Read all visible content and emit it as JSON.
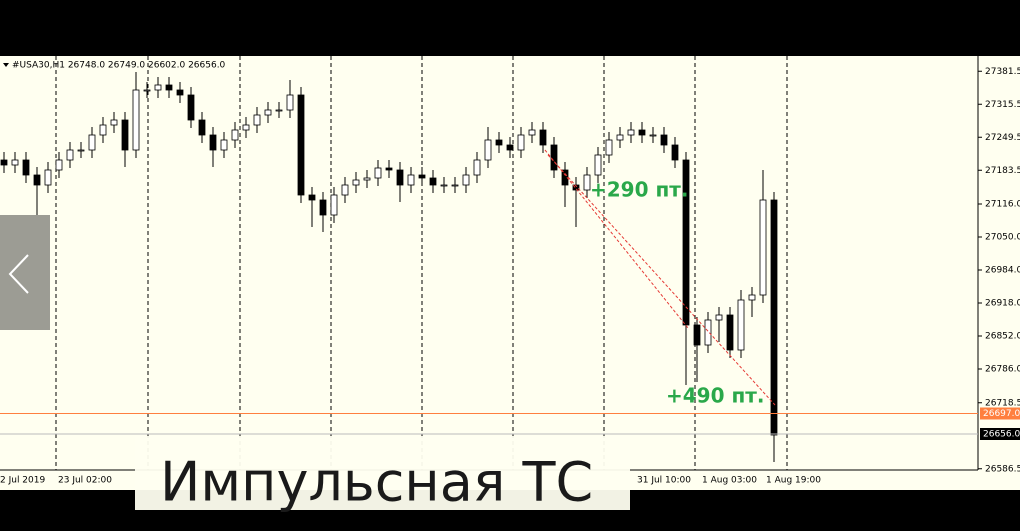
{
  "chart_data": {
    "type": "candlestick",
    "header": "#USA30,H1  26748.0 26749.0 26602.0 26656.0",
    "overlay_title": "Импульсная ТС",
    "annotations": [
      "+290 пт.",
      "+490 пт."
    ],
    "x_labels": [
      "2 Jul 2019",
      "23 Jul 02:00",
      "31 Jul 10:00",
      "1 Aug 03:00",
      "1 Aug 19:00"
    ],
    "categories": [
      null,
      null,
      null,
      null,
      null,
      null,
      null,
      null,
      null,
      null,
      null,
      null,
      null,
      null,
      null,
      null,
      null,
      null,
      null,
      null,
      null,
      null,
      null,
      null,
      null,
      null,
      null,
      null,
      null,
      null,
      null,
      null,
      null,
      null,
      null,
      null,
      null,
      null,
      null,
      null,
      null,
      null,
      null,
      null,
      null,
      null,
      null,
      null,
      null,
      null,
      null,
      null,
      null,
      null,
      null,
      null,
      null,
      null,
      null,
      null,
      null,
      null,
      null,
      null,
      null,
      null,
      null,
      null,
      null,
      null,
      null
    ],
    "open": [
      27204,
      27194,
      27204,
      27174,
      27154,
      27184,
      27204,
      27224,
      27224,
      27254,
      27274,
      27284,
      27224,
      27344,
      27344,
      27354,
      27344,
      27334,
      27284,
      27254,
      27224,
      27244,
      27264,
      27274,
      27294,
      27304,
      27304,
      27334,
      27134,
      27124,
      27094,
      27134,
      27154,
      27164,
      27168,
      27188,
      27184,
      27154,
      27174,
      27168,
      27154,
      27154,
      27154,
      27174,
      27204,
      27244,
      27234,
      27224,
      27254,
      27264,
      27234,
      27184,
      27154,
      27144,
      27174,
      27214,
      27244,
      27254,
      27264,
      27254,
      27254,
      27234,
      27204,
      26874,
      26834,
      26884,
      26894,
      26824,
      26924,
      26934,
      27124
    ],
    "high": [
      27220,
      27220,
      27220,
      27190,
      27200,
      27220,
      27240,
      27240,
      27270,
      27290,
      27300,
      27300,
      27380,
      27360,
      27370,
      27370,
      27360,
      27350,
      27300,
      27270,
      27260,
      27280,
      27290,
      27310,
      27320,
      27320,
      27364,
      27350,
      27150,
      27140,
      27150,
      27170,
      27180,
      27184,
      27204,
      27204,
      27200,
      27190,
      27190,
      27184,
      27170,
      27170,
      27190,
      27220,
      27270,
      27260,
      27250,
      27270,
      27280,
      27280,
      27250,
      27200,
      27170,
      27190,
      27230,
      27260,
      27270,
      27280,
      27280,
      27270,
      27270,
      27250,
      27220,
      26890,
      26900,
      26910,
      26910,
      26944,
      26950,
      27184,
      27140
    ],
    "low": [
      27178,
      27178,
      27158,
      27094,
      27138,
      27168,
      27188,
      27208,
      27208,
      27238,
      27258,
      27190,
      27208,
      27328,
      27328,
      27328,
      27318,
      27268,
      27238,
      27190,
      27208,
      27228,
      27248,
      27258,
      27278,
      27288,
      27288,
      27118,
      27070,
      27060,
      27078,
      27118,
      27138,
      27148,
      27152,
      27168,
      27120,
      27138,
      27152,
      27138,
      27138,
      27138,
      27138,
      27158,
      27188,
      27218,
      27208,
      27208,
      27238,
      27218,
      27168,
      27110,
      27070,
      27128,
      27158,
      27198,
      27228,
      27238,
      27238,
      27238,
      27218,
      27188,
      26754,
      26760,
      26818,
      26840,
      26808,
      26808,
      26890,
      26918,
      26600
    ],
    "close": [
      27194,
      27204,
      27174,
      27154,
      27184,
      27204,
      27224,
      27224,
      27254,
      27274,
      27284,
      27224,
      27344,
      27344,
      27354,
      27344,
      27334,
      27284,
      27254,
      27224,
      27244,
      27264,
      27274,
      27294,
      27304,
      27304,
      27334,
      27134,
      27124,
      27094,
      27134,
      27154,
      27164,
      27168,
      27188,
      27184,
      27154,
      27174,
      27168,
      27154,
      27154,
      27154,
      27174,
      27204,
      27244,
      27234,
      27224,
      27254,
      27264,
      27234,
      27184,
      27154,
      27144,
      27174,
      27214,
      27244,
      27254,
      27264,
      27254,
      27254,
      27234,
      27204,
      26874,
      26834,
      26884,
      26894,
      26824,
      26924,
      26934,
      27124,
      26654
    ],
    "up_color": "#ffffff",
    "down_color": "#000000",
    "ylim": [
      26584,
      27412
    ],
    "yticks": [
      27381.5,
      27315.5,
      27249.5,
      27183.5,
      {
        "value": 27116,
        "label": "27116.0"
      },
      {
        "value": 27050,
        "label": "27050.0"
      },
      {
        "value": 26984,
        "label": "26984.0"
      },
      {
        "value": 26918,
        "label": "26918.0"
      },
      {
        "value": 26852,
        "label": "26852.0"
      },
      {
        "value": 26786,
        "label": "26786.0"
      },
      26718.5,
      26586.5
    ],
    "levels": [
      {
        "value": 26697,
        "label": "26697.0",
        "color": "#ff7f3f"
      },
      {
        "value": 26656,
        "label": "26656.0",
        "color": "#000000"
      }
    ]
  }
}
